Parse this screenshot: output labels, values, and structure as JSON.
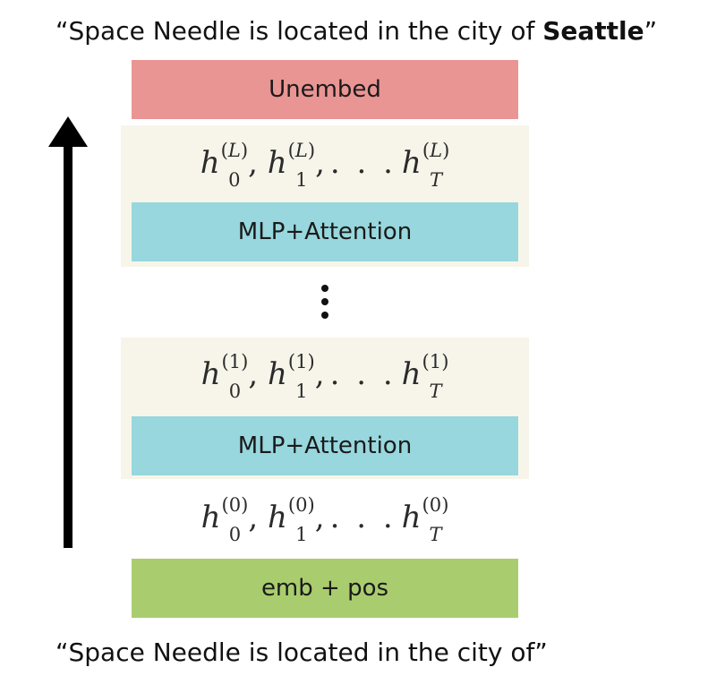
{
  "captions": {
    "top_prefix": "“Space Needle is located in the city of ",
    "top_bold": "Seattle",
    "top_suffix": "”",
    "bottom": "“Space Needle is located in the city of”"
  },
  "blocks": {
    "unembed": "Unembed",
    "mlp_attention_top": "MLP+Attention",
    "mlp_attention_bottom": "MLP+Attention",
    "emb_pos": "emb + pos"
  },
  "states": {
    "layer_L": {
      "sup": "L",
      "subs": [
        "0",
        "1",
        "T"
      ]
    },
    "layer_1": {
      "sup": "1",
      "subs": [
        "0",
        "1",
        "T"
      ]
    },
    "layer_0": {
      "sup": "0",
      "subs": [
        "0",
        "1",
        "T"
      ]
    }
  },
  "colors": {
    "unembed": "#e99593",
    "mlp_attention": "#97d7dd",
    "emb_pos": "#a9cd6e",
    "panel": "#f7f5ea",
    "arrow": "#000000"
  },
  "icons": {
    "arrow": "up-arrow",
    "ellipsis": "vertical-ellipsis"
  }
}
